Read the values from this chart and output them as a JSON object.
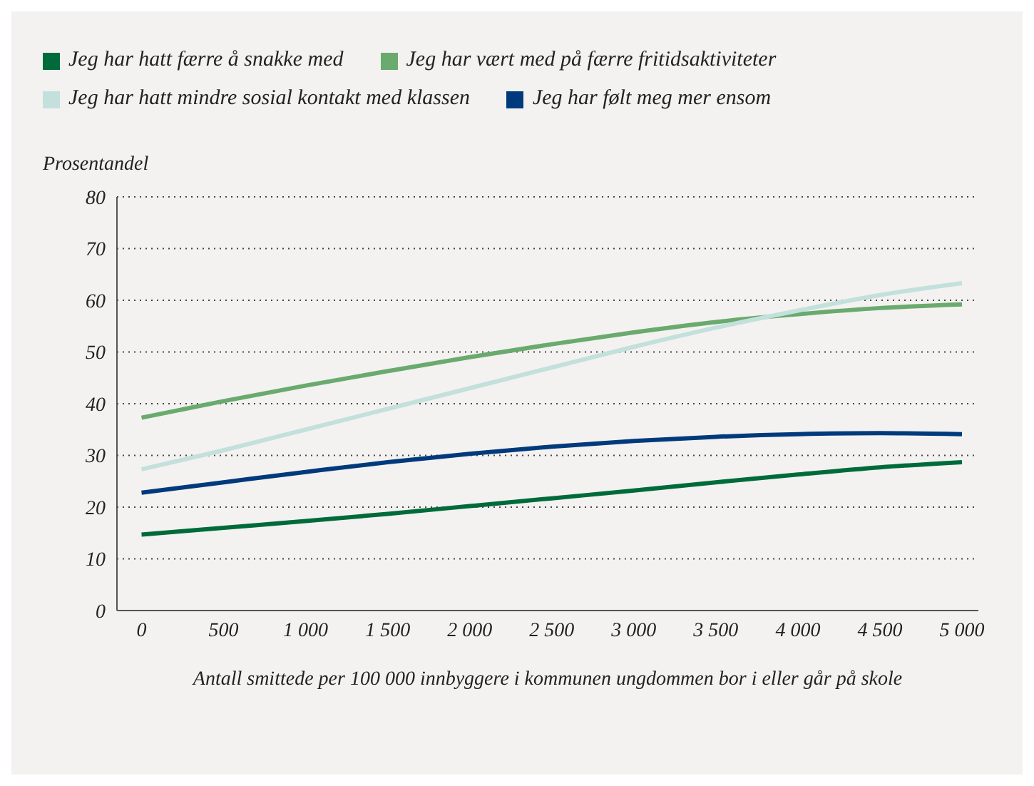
{
  "chart_data": {
    "type": "line",
    "ylabel": "Prosentandel",
    "xlabel": "Antall smittede per 100 000 innbyggere i kommunen ungdommen bor i eller går på skole",
    "x": [
      0,
      500,
      1000,
      1500,
      2000,
      2500,
      3000,
      3500,
      4000,
      4500,
      5000
    ],
    "series": [
      {
        "name": "Jeg har hatt færre å snakke med",
        "color": "#006b3a",
        "values": [
          14.7,
          16,
          17.3,
          18.7,
          20.2,
          21.7,
          23.2,
          24.8,
          26.3,
          27.7,
          28.7
        ]
      },
      {
        "name": "Jeg har vært med på færre fritidsaktiviteter",
        "color": "#6aaa6e",
        "values": [
          37.3,
          40.5,
          43.5,
          46.3,
          49,
          51.5,
          53.8,
          55.8,
          57.3,
          58.5,
          59.2
        ]
      },
      {
        "name": "Jeg har hatt mindre sosial kontakt med klassen",
        "color": "#c3e0dc",
        "values": [
          27.3,
          31,
          35,
          39,
          43,
          47,
          51,
          54.7,
          58,
          61,
          63.3
        ]
      },
      {
        "name": "Jeg har følt meg mer ensom",
        "color": "#003a7d",
        "values": [
          22.8,
          24.8,
          26.8,
          28.7,
          30.3,
          31.7,
          32.8,
          33.6,
          34.1,
          34.3,
          34.1
        ]
      }
    ],
    "xlim": [
      -150,
      5100
    ],
    "xticks": [
      0,
      500,
      {
        "value": 1000,
        "label": "1 000"
      },
      {
        "value": 1500,
        "label": "1 500"
      },
      {
        "value": 2000,
        "label": "2 000"
      },
      {
        "value": 2500,
        "label": "2 500"
      },
      {
        "value": 3000,
        "label": "3 000"
      },
      {
        "value": 3500,
        "label": "3 500"
      },
      {
        "value": 4000,
        "label": "4 000"
      },
      {
        "value": 4500,
        "label": "4 500"
      },
      {
        "value": 5000,
        "label": "5 000"
      }
    ],
    "ylim": [
      0,
      80
    ],
    "yticks": [
      0,
      10,
      20,
      30,
      40,
      50,
      60,
      70,
      80
    ],
    "grid": "y",
    "legend": "top left",
    "marker": "none",
    "line_style": "solid"
  }
}
